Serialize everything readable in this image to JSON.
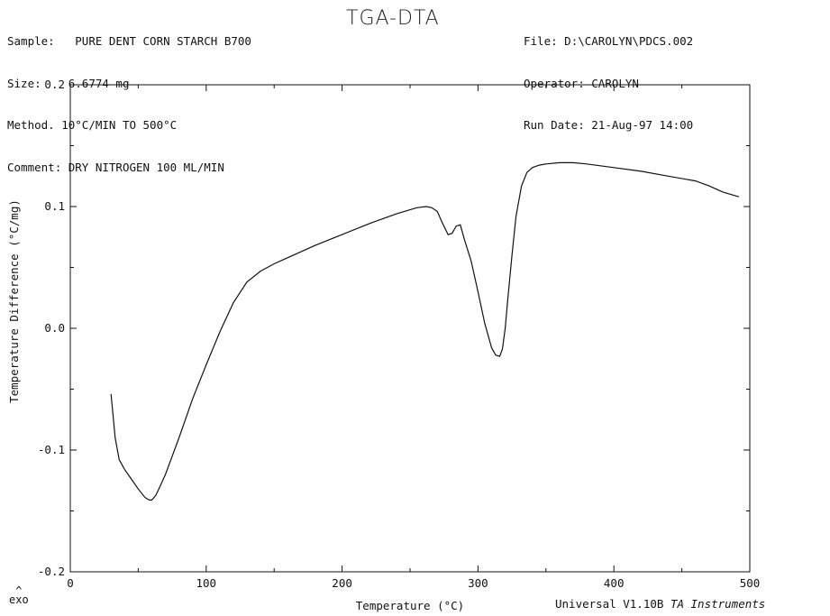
{
  "header": {
    "left": [
      {
        "key": "Sample",
        "value": "PURE DENT CORN STARCH B700"
      },
      {
        "key": "Size",
        "value": "6.6774 mg"
      },
      {
        "key": "Method",
        "value": "10°C/MIN TO 500°C"
      },
      {
        "key": "Comment",
        "value": "DRY NITROGEN 100 ML/MIN"
      }
    ],
    "right": [
      {
        "key": "File",
        "value": "D:\\CAROLYN\\PDCS.002"
      },
      {
        "key": "Operator",
        "value": "CAROLYN"
      },
      {
        "key": "Run Date",
        "value": "21-Aug-97 14:00"
      }
    ]
  },
  "footer": {
    "software": "Universal V1.10B",
    "vendor": "TA Instruments"
  },
  "exo": {
    "caret": "^",
    "label": "exo"
  },
  "chart_data": {
    "type": "line",
    "title": "TGA-DTA",
    "xlabel": "Temperature (°C)",
    "ylabel": "Temperature Difference (°C/mg)",
    "xlim": [
      0,
      500
    ],
    "ylim": [
      -0.2,
      0.2
    ],
    "xticks": [
      0,
      100,
      200,
      300,
      400,
      500
    ],
    "yticks": [
      -0.2,
      -0.1,
      0.0,
      0.1,
      0.2
    ],
    "ytick_labels": [
      "-0.2",
      "-0.1",
      "0.0",
      "0.1",
      "0.2"
    ],
    "grid": false,
    "series": [
      {
        "x": [
          30,
          33,
          36,
          40,
          45,
          50,
          55,
          58,
          60,
          63,
          66,
          70,
          75,
          80,
          90,
          100,
          110,
          120,
          130,
          140,
          150,
          160,
          180,
          200,
          220,
          240,
          255,
          262,
          266,
          270,
          274,
          278,
          281,
          284,
          287,
          290,
          295,
          300,
          305,
          310,
          313,
          316,
          318,
          320,
          322,
          325,
          328,
          332,
          336,
          340,
          345,
          350,
          360,
          370,
          380,
          400,
          420,
          440,
          460,
          470,
          480,
          492
        ],
        "y": [
          -0.054,
          -0.09,
          -0.108,
          -0.116,
          -0.124,
          -0.132,
          -0.139,
          -0.141,
          -0.141,
          -0.137,
          -0.13,
          -0.12,
          -0.105,
          -0.09,
          -0.058,
          -0.03,
          -0.003,
          0.021,
          0.038,
          0.047,
          0.053,
          0.058,
          0.068,
          0.077,
          0.086,
          0.094,
          0.099,
          0.1,
          0.099,
          0.096,
          0.086,
          0.077,
          0.078,
          0.084,
          0.085,
          0.073,
          0.055,
          0.03,
          0.004,
          -0.016,
          -0.022,
          -0.023,
          -0.017,
          0.0,
          0.025,
          0.06,
          0.092,
          0.117,
          0.128,
          0.132,
          0.134,
          0.135,
          0.136,
          0.136,
          0.135,
          0.132,
          0.129,
          0.125,
          0.121,
          0.117,
          0.112,
          0.108
        ]
      }
    ]
  }
}
